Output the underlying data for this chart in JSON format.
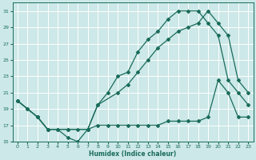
{
  "xlabel": "Humidex (Indice chaleur)",
  "bg_color": "#cce8e8",
  "grid_color": "#ffffff",
  "line_color": "#1a6b5a",
  "xlim": [
    -0.5,
    23.5
  ],
  "ylim": [
    15,
    32
  ],
  "xticks": [
    0,
    1,
    2,
    3,
    4,
    5,
    6,
    7,
    8,
    9,
    10,
    11,
    12,
    13,
    14,
    15,
    16,
    17,
    18,
    19,
    20,
    21,
    22,
    23
  ],
  "yticks": [
    15,
    17,
    19,
    21,
    23,
    25,
    27,
    29,
    31
  ],
  "line1_x": [
    0,
    1,
    2,
    3,
    4,
    5,
    6,
    7,
    8,
    9,
    10,
    11,
    12,
    13,
    14,
    15,
    16,
    17,
    18,
    19,
    20,
    21,
    22,
    23
  ],
  "line1_y": [
    20,
    19,
    18,
    16.5,
    16.5,
    15.5,
    15.0,
    16.5,
    19.5,
    21.0,
    23.0,
    23.5,
    26.0,
    27.5,
    28.5,
    30.0,
    31.0,
    31.0,
    31.0,
    29.5,
    28.0,
    22.5,
    21.0,
    19.5
  ],
  "line2_x": [
    0,
    1,
    2,
    3,
    5,
    7,
    8,
    10,
    11,
    12,
    13,
    14,
    15,
    16,
    17,
    18,
    19,
    20,
    21,
    22,
    23
  ],
  "line2_y": [
    20,
    19,
    18,
    16.5,
    16.5,
    16.5,
    19.5,
    21.0,
    22.0,
    23.5,
    25.0,
    26.5,
    27.5,
    28.5,
    29.0,
    29.5,
    31.0,
    29.5,
    28.0,
    22.5,
    21.0
  ],
  "line3_x": [
    0,
    2,
    3,
    4,
    5,
    6,
    7,
    8,
    9,
    10,
    11,
    12,
    13,
    14,
    15,
    16,
    17,
    18,
    19,
    20,
    21,
    22,
    23
  ],
  "line3_y": [
    20,
    18,
    16.5,
    16.5,
    16.5,
    16.5,
    16.5,
    17.0,
    17.0,
    17.0,
    17.0,
    17.0,
    17.0,
    17.0,
    17.5,
    17.5,
    17.5,
    17.5,
    18.0,
    22.5,
    21.0,
    18.0,
    18.0
  ],
  "marker": "D",
  "markersize": 2.0,
  "linewidth": 0.9
}
